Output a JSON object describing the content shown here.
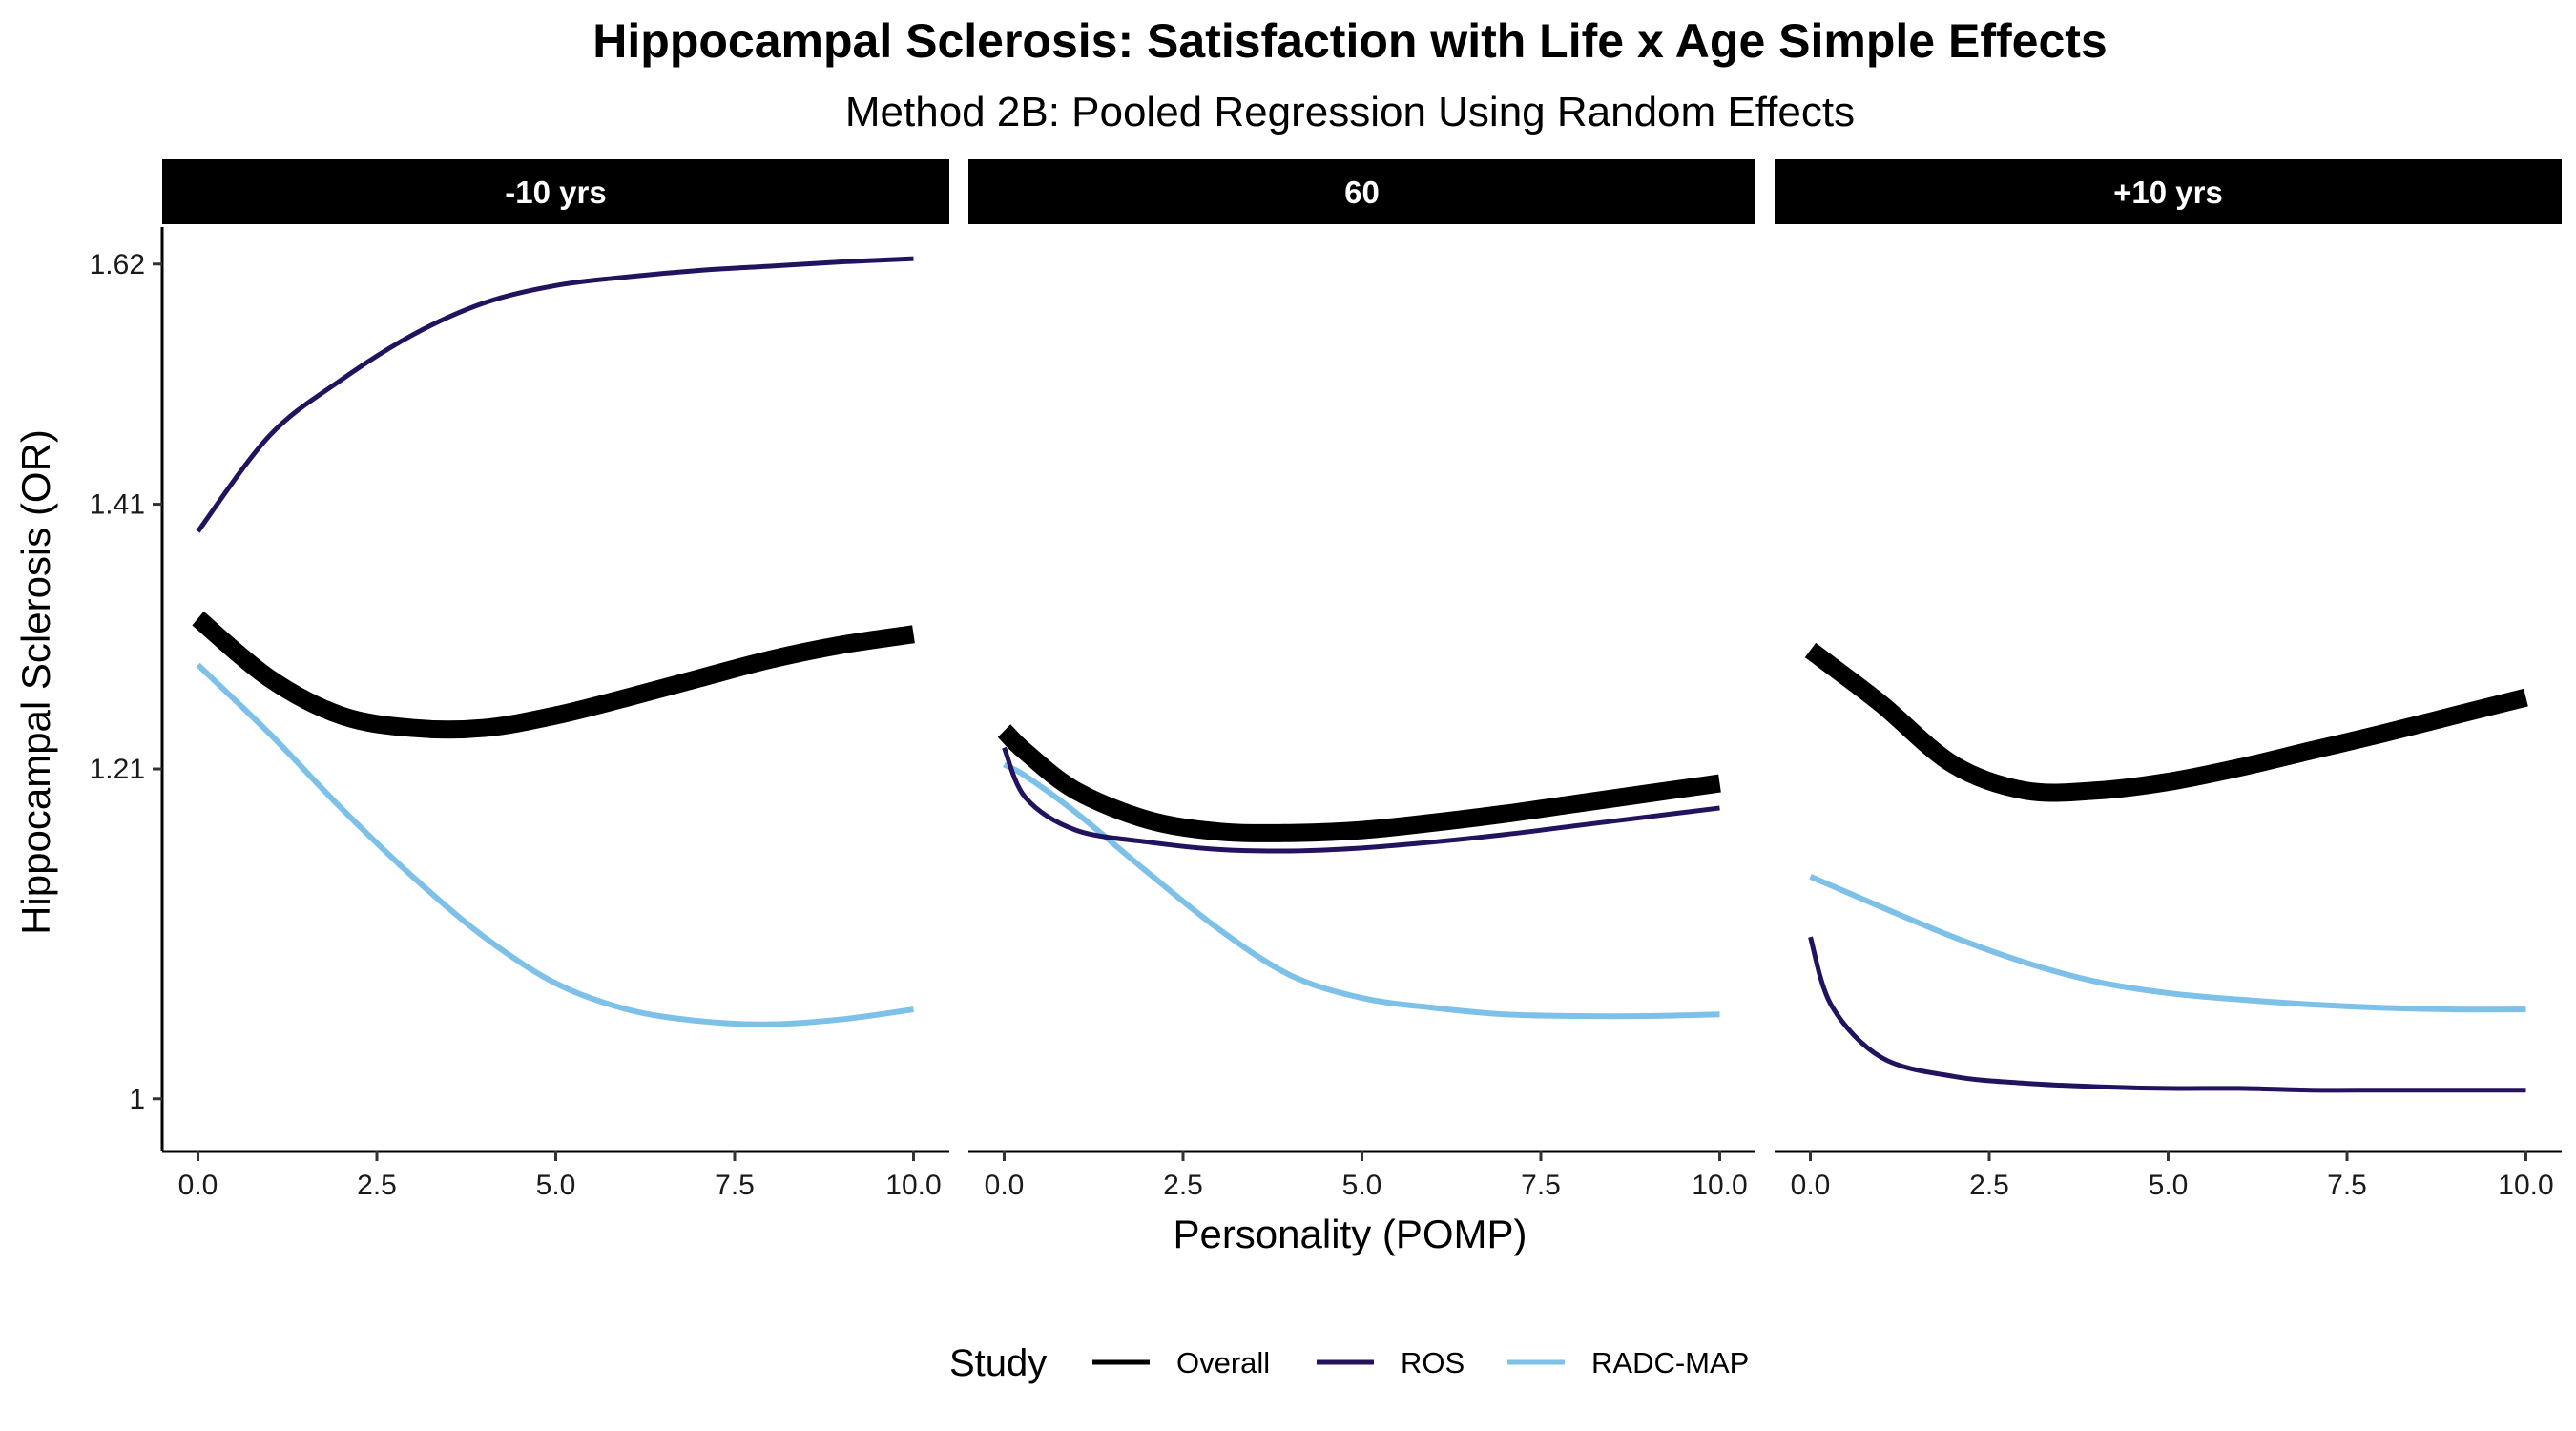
{
  "chart_data": {
    "type": "line",
    "title": "Hippocampal Sclerosis: Satisfaction with Life x Age Simple Effects",
    "subtitle": "Method 2B: Pooled Regression Using Random Effects",
    "xlabel": "Personality (POMP)",
    "ylabel": "Hippocampal Sclerosis (OR)",
    "x_ticks": [
      "0.0",
      "2.5",
      "5.0",
      "7.5",
      "10.0"
    ],
    "x_tick_values": [
      0,
      2.5,
      5,
      7.5,
      10
    ],
    "xlim": [
      -0.5,
      10.5
    ],
    "y_ticks": [
      "1",
      "1.21",
      "1.41",
      "1.62"
    ],
    "y_tick_values": [
      1.0,
      1.21,
      1.41,
      1.62
    ],
    "ylim": [
      0.97,
      1.655
    ],
    "y_scale": "log",
    "grid": false,
    "legend": {
      "title": "Study",
      "position": "bottom",
      "entries": [
        "Overall",
        "ROS",
        "RADC-MAP"
      ]
    },
    "colors": {
      "Overall": "#000000",
      "ROS": "#23135e",
      "RADC-MAP": "#7dc1e8"
    },
    "panels": [
      {
        "label": "-10 yrs",
        "x": [
          0,
          1,
          2,
          3,
          4,
          5,
          6,
          7,
          8,
          9,
          10
        ],
        "series": [
          {
            "name": "Overall",
            "values": [
              1.32,
              1.275,
              1.248,
              1.239,
              1.239,
              1.248,
              1.261,
              1.275,
              1.289,
              1.3,
              1.308
            ]
          },
          {
            "name": "ROS",
            "values": [
              1.388,
              1.467,
              1.515,
              1.555,
              1.584,
              1.6,
              1.608,
              1.614,
              1.618,
              1.622,
              1.625
            ]
          },
          {
            "name": "RADC-MAP",
            "values": [
              1.285,
              1.235,
              1.183,
              1.137,
              1.098,
              1.069,
              1.053,
              1.046,
              1.044,
              1.047,
              1.053
            ]
          }
        ]
      },
      {
        "label": "60",
        "x": [
          0,
          0.3,
          1,
          2,
          3,
          4,
          5,
          6,
          7,
          8,
          9,
          10
        ],
        "series": [
          {
            "name": "Overall",
            "values": [
              1.237,
              1.222,
              1.195,
              1.175,
              1.167,
              1.166,
              1.168,
              1.173,
              1.179,
              1.186,
              1.193,
              1.2
            ]
          },
          {
            "name": "ROS",
            "values": [
              1.225,
              1.19,
              1.168,
              1.16,
              1.155,
              1.154,
              1.156,
              1.16,
              1.165,
              1.171,
              1.177,
              1.183
            ]
          },
          {
            "name": "RADC-MAP",
            "values": [
              1.213,
              1.205,
              1.18,
              1.14,
              1.103,
              1.074,
              1.06,
              1.054,
              1.05,
              1.049,
              1.049,
              1.05
            ]
          }
        ]
      },
      {
        "label": "+10 yrs",
        "x": [
          0,
          0.3,
          1,
          2,
          3,
          4,
          5,
          6,
          7,
          8,
          9,
          10
        ],
        "series": [
          {
            "name": "Overall",
            "values": [
              1.296,
              1.284,
              1.256,
              1.213,
              1.195,
              1.195,
              1.201,
              1.211,
              1.223,
              1.235,
              1.248,
              1.261
            ]
          },
          {
            "name": "ROS",
            "values": [
              1.098,
              1.055,
              1.024,
              1.013,
              1.009,
              1.007,
              1.006,
              1.006,
              1.005,
              1.005,
              1.005,
              1.005
            ]
          },
          {
            "name": "RADC-MAP",
            "values": [
              1.137,
              1.131,
              1.117,
              1.098,
              1.082,
              1.07,
              1.063,
              1.059,
              1.056,
              1.054,
              1.053,
              1.053
            ]
          }
        ]
      }
    ]
  }
}
